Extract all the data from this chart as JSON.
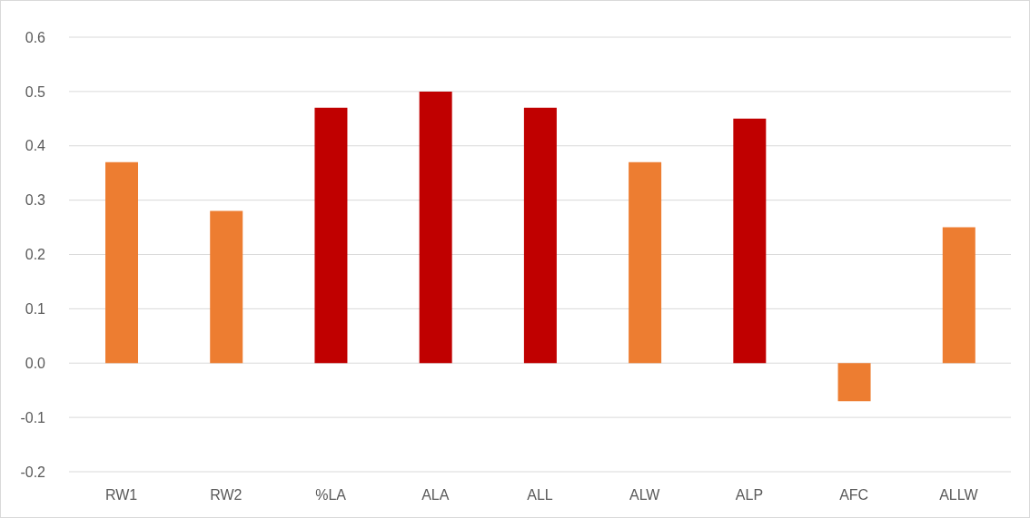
{
  "chart_data": {
    "type": "bar",
    "categories": [
      "RW1",
      "RW2",
      "%LA",
      "ALA",
      "ALL",
      "ALW",
      "ALP",
      "AFC",
      "ALLW"
    ],
    "values": [
      0.37,
      0.28,
      0.47,
      0.5,
      0.47,
      0.37,
      0.45,
      -0.07,
      0.25
    ],
    "colors": [
      "#ed7d31",
      "#ed7d31",
      "#c00000",
      "#c00000",
      "#c00000",
      "#ed7d31",
      "#c00000",
      "#ed7d31",
      "#ed7d31"
    ],
    "ylim": [
      -0.2,
      0.6
    ],
    "yticks": [
      {
        "value": -0.2,
        "label": "-0.2"
      },
      {
        "value": -0.1,
        "label": "-0.1"
      },
      {
        "value": 0,
        "label": "0.0"
      },
      {
        "value": 0.1,
        "label": "0.1"
      },
      {
        "value": 0.2,
        "label": "0.2"
      },
      {
        "value": 0.3,
        "label": "0.3"
      },
      {
        "value": 0.4,
        "label": "0.4"
      },
      {
        "value": 0.5,
        "label": "0.5"
      },
      {
        "value": 0.6,
        "label": "0.6"
      }
    ],
    "grid": "y"
  }
}
